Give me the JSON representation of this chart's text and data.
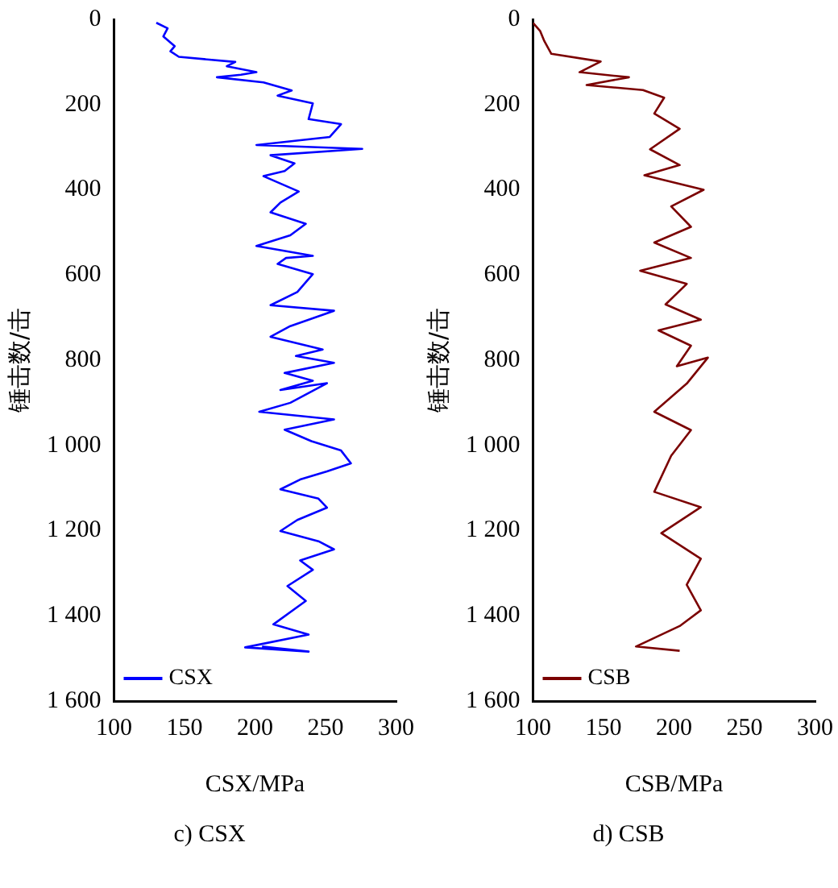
{
  "chart_data": [
    {
      "type": "line",
      "xlabel": "CSX/MPa",
      "ylabel": "锤击数/击",
      "annotations": [
        "c) CSX"
      ],
      "xlim": [
        100,
        300
      ],
      "xticks": [
        100,
        150,
        200,
        250,
        300
      ],
      "ylim": [
        1600,
        0
      ],
      "yticks": [
        0,
        200,
        400,
        600,
        800,
        {
          "value": 1000,
          "label": "1 000"
        },
        {
          "value": 1200,
          "label": "1 200"
        },
        {
          "value": 1400,
          "label": "1 400"
        },
        {
          "value": 1600,
          "label": "1 600"
        }
      ],
      "legend": "bottom left",
      "grid": false,
      "marker": "none",
      "line_style": "solid",
      "series": [
        {
          "name": "CSX",
          "color": "#0000ff",
          "x": [
            130,
            138,
            135,
            143,
            140,
            146,
            186,
            180,
            201,
            190,
            173,
            206,
            226,
            216,
            241,
            238,
            261,
            253,
            201,
            276,
            211,
            228,
            221,
            206,
            231,
            218,
            211,
            236,
            225,
            201,
            241,
            222,
            216,
            241,
            230,
            211,
            256,
            225,
            211,
            248,
            229,
            256,
            221,
            241,
            218,
            251,
            225,
            203,
            256,
            221,
            240,
            261,
            268,
            251,
            232,
            218,
            245,
            251,
            230,
            218,
            245,
            256,
            232,
            241,
            223,
            236,
            213,
            238,
            193,
            238,
            205
          ],
          "values": [
            8,
            21,
            40,
            63,
            75,
            88,
            100,
            110,
            124,
            130,
            136,
            148,
            167,
            179,
            197,
            234,
            246,
            276,
            295,
            304,
            319,
            338,
            356,
            368,
            404,
            430,
            453,
            480,
            507,
            532,
            555,
            560,
            574,
            598,
            640,
            671,
            684,
            720,
            745,
            775,
            790,
            806,
            830,
            848,
            870,
            854,
            900,
            921,
            939,
            963,
            990,
            1012,
            1042,
            1061,
            1080,
            1103,
            1125,
            1146,
            1175,
            1201,
            1225,
            1244,
            1270,
            1292,
            1330,
            1365,
            1420,
            1444,
            1474,
            1484,
            1472
          ]
        }
      ]
    },
    {
      "type": "line",
      "xlabel": "CSB/MPa",
      "ylabel": "锤击数/击",
      "annotations": [
        "d) CSB"
      ],
      "xlim": [
        100,
        300
      ],
      "xticks": [
        100,
        150,
        200,
        250,
        300
      ],
      "ylim": [
        1600,
        0
      ],
      "yticks": [
        0,
        200,
        400,
        600,
        800,
        {
          "value": 1000,
          "label": "1 000"
        },
        {
          "value": 1200,
          "label": "1 200"
        },
        {
          "value": 1400,
          "label": "1 400"
        },
        {
          "value": 1600,
          "label": "1 600"
        }
      ],
      "legend": "bottom left",
      "grid": false,
      "marker": "none",
      "line_style": "solid",
      "series": [
        {
          "name": "CSB",
          "color": "#7b0000",
          "x": [
            100,
            105,
            108,
            113,
            148,
            133,
            168,
            138,
            178,
            193,
            186,
            204,
            183,
            204,
            179,
            221,
            198,
            212,
            186,
            212,
            176,
            209,
            194,
            219,
            189,
            212,
            202,
            224,
            209,
            186,
            212,
            198,
            186,
            219,
            191,
            219,
            209,
            219,
            204,
            173,
            204
          ],
          "values": [
            8,
            27,
            51,
            81,
            99,
            124,
            136,
            154,
            166,
            184,
            221,
            257,
            305,
            342,
            366,
            400,
            439,
            487,
            524,
            560,
            590,
            621,
            669,
            705,
            730,
            766,
            814,
            794,
            855,
            921,
            964,
            1024,
            1109,
            1145,
            1206,
            1266,
            1327,
            1387,
            1424,
            1472,
            1482
          ]
        }
      ]
    }
  ]
}
